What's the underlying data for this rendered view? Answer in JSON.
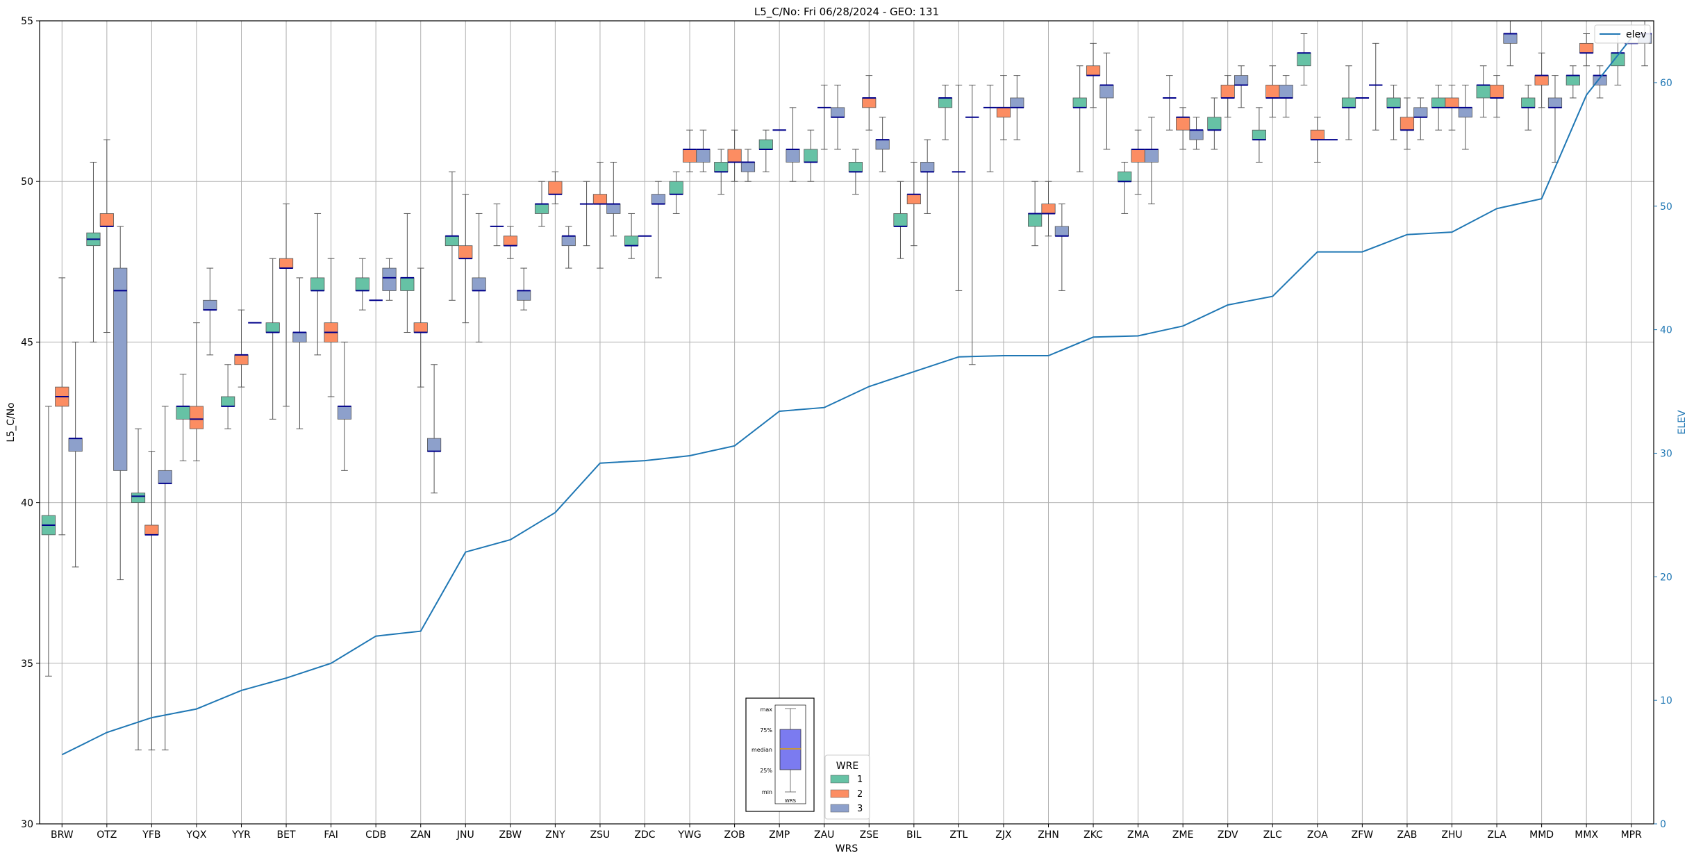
{
  "chart_data": {
    "type": "box",
    "title": "L5_C/No: Fri 06/28/2024 - GEO: 131",
    "xlabel": "WRS",
    "ylabel": "L5_C/No",
    "y2label": "ELEV",
    "ylim": [
      30,
      55
    ],
    "y2lim": [
      0,
      65
    ],
    "yticks": [
      30,
      35,
      40,
      45,
      50,
      55
    ],
    "y2ticks": [
      0,
      10,
      20,
      30,
      40,
      50,
      60
    ],
    "grid": true,
    "categories": [
      "BRW",
      "OTZ",
      "YFB",
      "YQX",
      "YYR",
      "BET",
      "FAI",
      "CDB",
      "ZAN",
      "JNU",
      "ZBW",
      "ZNY",
      "ZSU",
      "ZDC",
      "YWG",
      "ZOB",
      "ZMP",
      "ZAU",
      "ZSE",
      "BIL",
      "ZTL",
      "ZJX",
      "ZHN",
      "ZKC",
      "ZMA",
      "ZME",
      "ZDV",
      "ZLC",
      "ZOA",
      "ZFW",
      "ZAB",
      "ZHU",
      "ZLA",
      "MMD",
      "MMX",
      "MPR"
    ],
    "colors": {
      "1": "#66c2a5",
      "2": "#fc8d62",
      "3": "#8da0cb",
      "median": "#00008b",
      "line": "#1f77b4",
      "whisker": "#555555",
      "grid": "#b0b0b0"
    },
    "series": [
      {
        "name": "1",
        "boxes": [
          [
            34.6,
            39.0,
            39.3,
            39.6,
            43.0
          ],
          [
            45.0,
            48.0,
            48.2,
            48.4,
            50.6
          ],
          [
            32.3,
            40.0,
            40.2,
            40.3,
            42.3
          ],
          [
            41.3,
            42.6,
            43.0,
            43.0,
            44.0
          ],
          [
            42.3,
            43.0,
            43.0,
            43.3,
            44.3
          ],
          [
            42.6,
            45.3,
            45.3,
            45.6,
            47.6
          ],
          [
            44.6,
            46.6,
            46.6,
            47.0,
            49.0
          ],
          [
            46.0,
            46.6,
            46.6,
            47.0,
            47.6
          ],
          [
            45.3,
            46.6,
            47.0,
            47.0,
            49.0
          ],
          [
            46.3,
            48.0,
            48.3,
            48.3,
            50.3
          ],
          [
            48.0,
            48.6,
            48.6,
            48.6,
            49.3
          ],
          [
            48.6,
            49.0,
            49.3,
            49.3,
            50.0
          ],
          [
            48.0,
            49.3,
            49.3,
            49.3,
            50.0
          ],
          [
            47.6,
            48.0,
            48.0,
            48.3,
            49.0
          ],
          [
            49.0,
            49.6,
            49.6,
            50.0,
            50.3
          ],
          [
            49.6,
            50.3,
            50.3,
            50.6,
            51.0
          ],
          [
            50.3,
            51.0,
            51.0,
            51.3,
            51.6
          ],
          [
            50.0,
            50.6,
            50.6,
            51.0,
            51.6
          ],
          [
            49.6,
            50.3,
            50.3,
            50.6,
            51.0
          ],
          [
            47.6,
            48.6,
            48.6,
            49.0,
            50.0
          ],
          [
            51.3,
            52.3,
            52.6,
            52.6,
            53.0
          ],
          [
            50.3,
            52.3,
            52.3,
            52.3,
            53.0
          ],
          [
            48.0,
            48.6,
            49.0,
            49.0,
            50.0
          ],
          [
            50.3,
            52.3,
            52.3,
            52.6,
            53.6
          ],
          [
            49.0,
            50.0,
            50.0,
            50.3,
            50.6
          ],
          [
            51.6,
            52.6,
            52.6,
            52.6,
            53.3
          ],
          [
            51.0,
            51.6,
            51.6,
            52.0,
            52.6
          ],
          [
            50.6,
            51.3,
            51.3,
            51.6,
            52.3
          ],
          [
            53.0,
            53.6,
            54.0,
            54.0,
            54.6
          ],
          [
            51.3,
            52.3,
            52.3,
            52.6,
            53.6
          ],
          [
            51.3,
            52.3,
            52.3,
            52.6,
            53.0
          ],
          [
            51.6,
            52.3,
            52.3,
            52.6,
            53.0
          ],
          [
            52.0,
            52.6,
            53.0,
            53.0,
            53.6
          ],
          [
            51.6,
            52.3,
            52.3,
            52.6,
            53.0
          ],
          [
            52.6,
            53.0,
            53.3,
            53.3,
            53.6
          ],
          [
            53.0,
            53.6,
            54.0,
            54.0,
            54.6
          ]
        ]
      },
      {
        "name": "2",
        "boxes": [
          [
            39.0,
            43.0,
            43.3,
            43.6,
            47.0
          ],
          [
            45.3,
            48.6,
            48.6,
            49.0,
            51.3
          ],
          [
            32.3,
            39.0,
            39.0,
            39.3,
            41.6
          ],
          [
            41.3,
            42.3,
            42.6,
            43.0,
            45.6
          ],
          [
            43.6,
            44.3,
            44.6,
            44.6,
            46.0
          ],
          [
            43.0,
            47.3,
            47.3,
            47.6,
            49.3
          ],
          [
            43.3,
            45.0,
            45.3,
            45.6,
            47.6
          ],
          [
            46.3,
            46.3,
            46.3,
            46.3,
            46.3
          ],
          [
            43.6,
            45.3,
            45.3,
            45.6,
            47.3
          ],
          [
            45.6,
            47.6,
            47.6,
            48.0,
            49.6
          ],
          [
            47.6,
            48.0,
            48.0,
            48.3,
            48.6
          ],
          [
            49.3,
            49.6,
            49.6,
            50.0,
            50.3
          ],
          [
            47.3,
            49.3,
            49.3,
            49.6,
            50.6
          ],
          [
            48.3,
            48.3,
            48.3,
            48.3,
            48.3
          ],
          [
            50.3,
            50.6,
            51.0,
            51.0,
            51.6
          ],
          [
            50.0,
            50.6,
            50.6,
            51.0,
            51.6
          ],
          [
            51.6,
            51.6,
            51.6,
            51.6,
            51.6
          ],
          [
            51.0,
            52.3,
            52.3,
            52.3,
            53.0
          ],
          [
            51.6,
            52.3,
            52.6,
            52.6,
            53.3
          ],
          [
            48.0,
            49.3,
            49.6,
            49.6,
            50.6
          ],
          [
            46.6,
            50.3,
            50.3,
            50.3,
            53.0
          ],
          [
            51.3,
            52.0,
            52.3,
            52.3,
            53.3
          ],
          [
            48.3,
            49.0,
            49.0,
            49.3,
            50.0
          ],
          [
            52.3,
            53.3,
            53.3,
            53.6,
            54.3
          ],
          [
            49.6,
            50.6,
            51.0,
            51.0,
            51.6
          ],
          [
            51.0,
            51.6,
            52.0,
            52.0,
            52.3
          ],
          [
            52.0,
            52.6,
            52.6,
            53.0,
            53.3
          ],
          [
            52.0,
            52.6,
            52.6,
            53.0,
            53.6
          ],
          [
            50.6,
            51.3,
            51.3,
            51.6,
            52.0
          ],
          [
            52.6,
            52.6,
            52.6,
            52.6,
            52.6
          ],
          [
            51.0,
            51.6,
            51.6,
            52.0,
            52.6
          ],
          [
            51.6,
            52.3,
            52.3,
            52.6,
            53.0
          ],
          [
            52.0,
            52.6,
            52.6,
            53.0,
            53.3
          ],
          [
            52.3,
            53.0,
            53.3,
            53.3,
            54.0
          ],
          [
            53.6,
            54.0,
            54.0,
            54.3,
            54.6
          ],
          [
            54.3,
            54.3,
            54.3,
            54.3,
            54.3
          ]
        ]
      },
      {
        "name": "3",
        "boxes": [
          [
            38.0,
            41.6,
            42.0,
            42.0,
            45.0
          ],
          [
            37.6,
            41.0,
            46.6,
            47.3,
            48.6
          ],
          [
            32.3,
            40.6,
            40.6,
            41.0,
            43.0
          ],
          [
            44.6,
            46.0,
            46.0,
            46.3,
            47.3
          ],
          [
            45.6,
            45.6,
            45.6,
            45.6,
            45.6
          ],
          [
            42.3,
            45.0,
            45.3,
            45.3,
            47.0
          ],
          [
            41.0,
            42.6,
            43.0,
            43.0,
            45.0
          ],
          [
            46.3,
            46.6,
            47.0,
            47.3,
            47.6
          ],
          [
            40.3,
            41.6,
            41.6,
            42.0,
            44.3
          ],
          [
            45.0,
            46.6,
            46.6,
            47.0,
            49.0
          ],
          [
            46.0,
            46.3,
            46.6,
            46.6,
            47.3
          ],
          [
            47.3,
            48.0,
            48.3,
            48.3,
            48.6
          ],
          [
            48.3,
            49.0,
            49.3,
            49.3,
            50.6
          ],
          [
            47.0,
            49.3,
            49.3,
            49.6,
            50.0
          ],
          [
            50.3,
            50.6,
            51.0,
            51.0,
            51.6
          ],
          [
            50.0,
            50.3,
            50.6,
            50.6,
            51.0
          ],
          [
            50.0,
            50.6,
            51.0,
            51.0,
            52.3
          ],
          [
            51.0,
            52.0,
            52.0,
            52.3,
            53.0
          ],
          [
            50.3,
            51.0,
            51.3,
            51.3,
            52.0
          ],
          [
            49.0,
            50.3,
            50.3,
            50.6,
            51.3
          ],
          [
            44.3,
            52.0,
            52.0,
            52.0,
            53.0
          ],
          [
            51.3,
            52.3,
            52.3,
            52.6,
            53.3
          ],
          [
            46.6,
            48.3,
            48.3,
            48.6,
            49.3
          ],
          [
            51.0,
            52.6,
            53.0,
            53.0,
            54.0
          ],
          [
            49.3,
            50.6,
            51.0,
            51.0,
            52.0
          ],
          [
            51.0,
            51.3,
            51.6,
            51.6,
            52.0
          ],
          [
            52.3,
            53.0,
            53.0,
            53.3,
            53.6
          ],
          [
            52.0,
            52.6,
            52.6,
            53.0,
            53.3
          ],
          [
            51.3,
            51.3,
            51.3,
            51.3,
            51.3
          ],
          [
            51.6,
            53.0,
            53.0,
            53.0,
            54.3
          ],
          [
            51.3,
            52.0,
            52.0,
            52.3,
            52.6
          ],
          [
            51.0,
            52.0,
            52.3,
            52.3,
            53.0
          ],
          [
            53.6,
            54.3,
            54.6,
            54.6,
            55.0
          ],
          [
            50.6,
            52.3,
            52.3,
            52.6,
            53.3
          ],
          [
            52.6,
            53.0,
            53.3,
            53.3,
            53.6
          ],
          [
            53.6,
            54.3,
            54.6,
            54.6,
            55.0
          ]
        ]
      }
    ],
    "line": {
      "name": "elev",
      "axis": "right",
      "values": [
        5.6,
        7.4,
        8.6,
        9.3,
        10.8,
        11.8,
        13.0,
        15.2,
        15.6,
        22.0,
        23.0,
        25.2,
        29.2,
        29.4,
        29.8,
        30.6,
        33.4,
        33.7,
        35.4,
        36.6,
        37.8,
        37.9,
        37.9,
        39.4,
        39.5,
        40.3,
        42.0,
        42.7,
        46.3,
        46.3,
        47.7,
        47.9,
        49.8,
        50.6,
        59.0,
        63.6
      ]
    },
    "legend_line": {
      "position": "upper right",
      "label": "elev"
    },
    "legend_wre": {
      "title": "WRE",
      "position": "lower center",
      "labels": [
        "1",
        "2",
        "3"
      ]
    },
    "inset_key": {
      "labels": [
        "max",
        "75%",
        "median",
        "25%",
        "min"
      ],
      "xlabel": "WRS",
      "box_color": "#7b7bf0",
      "median_color": "#e0a000"
    }
  }
}
